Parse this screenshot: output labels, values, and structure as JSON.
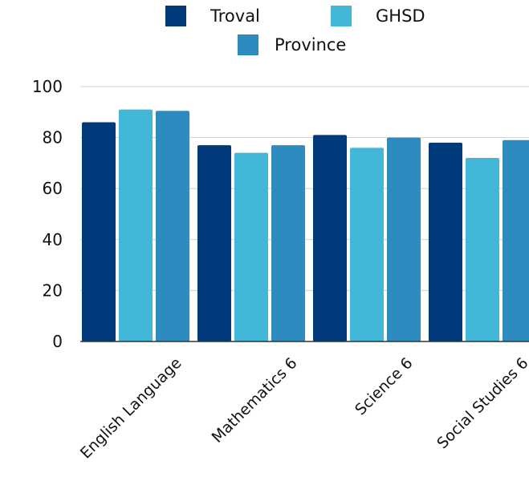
{
  "chart_data": {
    "type": "bar",
    "categories": [
      "English Language",
      "Mathematics 6",
      "Science 6",
      "Social Studies 6"
    ],
    "series": [
      {
        "name": "Troval",
        "color": "#003a7a",
        "values": [
          86,
          77,
          81,
          78
        ]
      },
      {
        "name": "GHSD",
        "color": "#42b7d8",
        "values": [
          91,
          74,
          76,
          72
        ]
      },
      {
        "name": "Province",
        "color": "#2e8bc0",
        "values": [
          90.5,
          77,
          80,
          79
        ]
      }
    ],
    "y_ticks": [
      "0",
      "20",
      "40",
      "60",
      "80",
      "100"
    ],
    "ylim": [
      0,
      100
    ],
    "grid": true,
    "legend_position": "top-center"
  }
}
